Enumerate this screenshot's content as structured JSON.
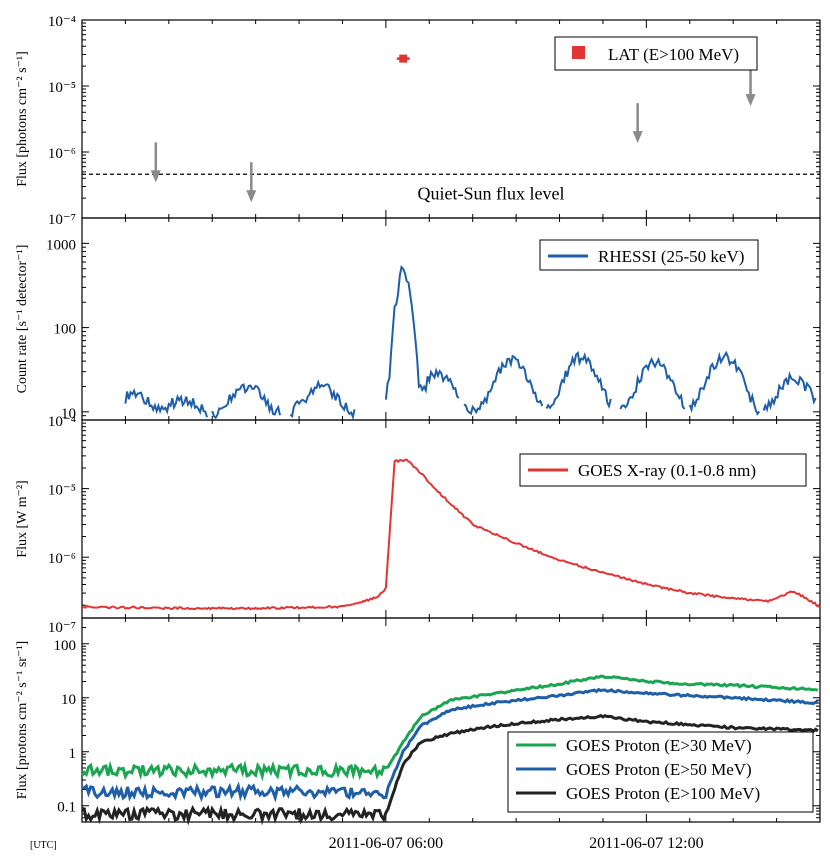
{
  "chart_data": [
    {
      "type": "scatter",
      "panel": "LAT",
      "ylabel": "Flux [photons cm⁻² s⁻¹]",
      "yscale": "log",
      "ylim": [
        1e-07,
        0.0001
      ],
      "ytick_labels": [
        "10⁻⁴",
        "10⁻⁵",
        "10⁻⁶",
        "10⁻⁷"
      ],
      "legend": [
        "LAT (E>100 MeV)"
      ],
      "series": [
        {
          "name": "LAT (E>100 MeV)",
          "color": "#e33434",
          "points": [
            {
              "t_hours": 6.4,
              "t_start": 6.25,
              "t_end": 6.55,
              "flux": 2.6e-05
            }
          ]
        }
      ],
      "upper_limits": [
        {
          "t_hours": 0.7,
          "flux": 1.4e-06
        },
        {
          "t_hours": 2.9,
          "flux": 7e-07
        },
        {
          "t_hours": 11.8,
          "flux": 5.5e-06
        },
        {
          "t_hours": 14.4,
          "flux": 2e-05
        }
      ],
      "reference_line": {
        "label": "Quiet-Sun flux level",
        "value": 4.6e-07
      }
    },
    {
      "type": "line",
      "panel": "RHESSI",
      "ylabel": "Count rate [s⁻¹ detector⁻¹]",
      "yscale": "log",
      "ylim": [
        8,
        2000
      ],
      "ytick_labels": [
        "1000",
        "100",
        "10"
      ],
      "legend": [
        "RHESSI (25-50 keV)"
      ],
      "series": [
        {
          "name": "RHESSI (25-50 keV)",
          "color": "#1f5fa8",
          "peaks": [
            {
              "t_hours": 0.2,
              "value": 16
            },
            {
              "t_hours": 1.3,
              "value": 14
            },
            {
              "t_hours": 2.8,
              "value": 20
            },
            {
              "t_hours": 4.5,
              "value": 20
            },
            {
              "t_hours": 6.4,
              "value": 480
            },
            {
              "t_hours": 7.2,
              "value": 28
            },
            {
              "t_hours": 8.9,
              "value": 40
            },
            {
              "t_hours": 10.5,
              "value": 45
            },
            {
              "t_hours": 12.2,
              "value": 38
            },
            {
              "t_hours": 13.8,
              "value": 45
            },
            {
              "t_hours": 15.4,
              "value": 25
            }
          ]
        }
      ]
    },
    {
      "type": "line",
      "panel": "GOES X-ray",
      "ylabel": "Flux [W m⁻²]",
      "yscale": "log",
      "ylim": [
        1.3e-07,
        0.0001
      ],
      "ytick_labels": [
        "10⁻⁴",
        "10⁻⁵",
        "10⁻⁶",
        "10⁻⁷"
      ],
      "legend": [
        "GOES X-ray (0.1-0.8 nm)"
      ],
      "series": [
        {
          "name": "GOES X-ray (0.1-0.8 nm)",
          "color": "#e33434",
          "t_hours": [
            -1,
            1,
            3,
            5,
            5.8,
            6.0,
            6.2,
            6.5,
            6.8,
            7.2,
            8,
            9,
            10,
            11,
            12,
            13,
            14,
            14.8,
            15.4,
            16
          ],
          "values": [
            1.9e-07,
            1.8e-07,
            1.8e-07,
            1.9e-07,
            2.6e-07,
            3.5e-07,
            2.5e-05,
            2.6e-05,
            1.7e-05,
            9e-06,
            3e-06,
            1.6e-06,
            9e-07,
            6e-07,
            4e-07,
            3e-07,
            2.5e-07,
            2.3e-07,
            3.2e-07,
            1.9e-07
          ]
        }
      ]
    },
    {
      "type": "line",
      "panel": "GOES Proton",
      "ylabel": "Flux [protons cm⁻² s⁻¹ sr⁻¹]",
      "yscale": "log",
      "ylim": [
        0.05,
        300
      ],
      "ytick_labels": [
        "100",
        "10",
        "1",
        "0.1"
      ],
      "xlabel": "[UTC]",
      "xlim": [
        -1,
        16
      ],
      "xtick_labels": [
        "2011-06-07 06:00",
        "2011-06-07 12:00"
      ],
      "legend": [
        "GOES Proton (E>30 MeV)",
        "GOES Proton (E>50 MeV)",
        "GOES Proton (E>100 MeV)"
      ],
      "series": [
        {
          "name": "GOES Proton (E>30 MeV)",
          "color": "#1aa551",
          "t_hours": [
            -1,
            6.0,
            6.4,
            6.8,
            7.5,
            8.5,
            10,
            11,
            12,
            13,
            14,
            16
          ],
          "values": [
            0.45,
            0.45,
            1.5,
            4.5,
            9,
            12,
            18,
            25,
            20,
            18,
            17,
            14
          ]
        },
        {
          "name": "GOES Proton (E>50 MeV)",
          "color": "#1f5fa8",
          "t_hours": [
            -1,
            6.0,
            6.4,
            6.8,
            7.5,
            8.5,
            10,
            11,
            12,
            13,
            14,
            16
          ],
          "values": [
            0.18,
            0.18,
            1.0,
            3.0,
            6,
            8,
            11,
            14,
            12,
            11,
            10,
            8
          ]
        },
        {
          "name": "GOES Proton (E>100 MeV)",
          "color": "#222222",
          "t_hours": [
            -1,
            6.0,
            6.4,
            6.8,
            7.5,
            8.5,
            10,
            11,
            12,
            13,
            14,
            16
          ],
          "values": [
            0.07,
            0.07,
            0.6,
            1.5,
            2.2,
            3,
            4,
            4.5,
            3.6,
            3.2,
            2.8,
            2.5
          ]
        }
      ]
    }
  ],
  "annotations": {
    "quiet_sun_label": "Quiet-Sun flux level"
  }
}
